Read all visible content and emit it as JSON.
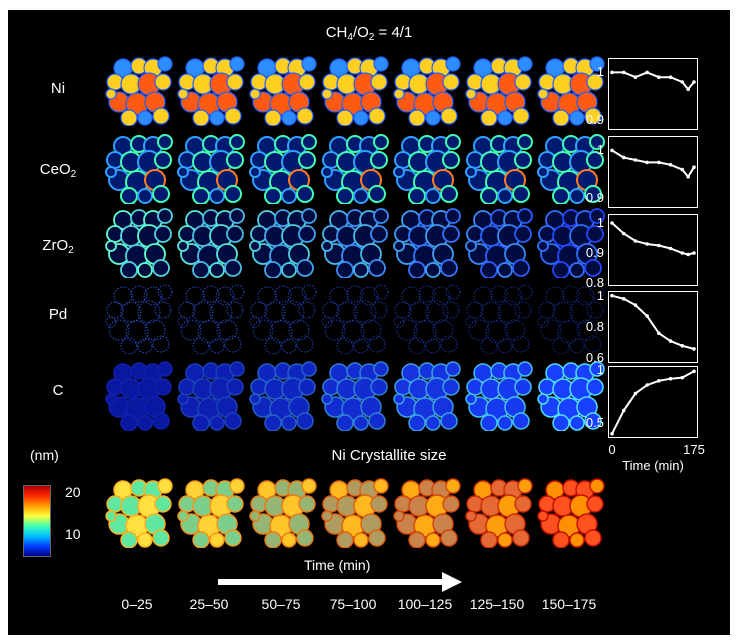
{
  "figure": {
    "title_main": "CH",
    "title_sub1": "4",
    "title_mid": "/O",
    "title_sub2": "2",
    "title_tail": " = 4/1",
    "row_labels": [
      {
        "main": "Ni",
        "sub": ""
      },
      {
        "main": "CeO",
        "sub": "2"
      },
      {
        "main": "ZrO",
        "sub": "2"
      },
      {
        "main": "Pd",
        "sub": ""
      },
      {
        "main": "C",
        "sub": ""
      }
    ],
    "section_label": "Ni Crystallite size",
    "colorbar_unit": "(nm)",
    "colorbar_ticks": [
      "20",
      "10"
    ],
    "time_arrow_label": "Time (min)",
    "time_bins": [
      "0–25",
      "25–50",
      "50–75",
      "75–100",
      "100–125",
      "125–150",
      "150–175"
    ],
    "colors": {
      "background": "#000000",
      "foreground": "#ffffff"
    }
  },
  "chart_data": [
    {
      "type": "line",
      "title": "Ni",
      "xlabel": "",
      "ylabel": "",
      "x": [
        0,
        25,
        50,
        75,
        100,
        125,
        150,
        162.5,
        175
      ],
      "values": [
        1.0,
        1.0,
        0.99,
        1.0,
        0.99,
        0.99,
        0.98,
        0.965,
        0.98
      ],
      "ylim": [
        0.88,
        1.03
      ],
      "yticks": [
        "1",
        "0.9"
      ],
      "ytick_values": [
        1.0,
        0.9
      ],
      "xlim": [
        0,
        175
      ]
    },
    {
      "type": "line",
      "title": "CeO2",
      "xlabel": "",
      "ylabel": "",
      "x": [
        0,
        25,
        50,
        75,
        100,
        125,
        150,
        162.5,
        175
      ],
      "values": [
        1.0,
        0.985,
        0.98,
        0.975,
        0.975,
        0.97,
        0.96,
        0.945,
        0.965
      ],
      "ylim": [
        0.88,
        1.03
      ],
      "yticks": [
        "1",
        "0.9"
      ],
      "ytick_values": [
        1.0,
        0.9
      ],
      "xlim": [
        0,
        175
      ]
    },
    {
      "type": "line",
      "title": "ZrO2",
      "xlabel": "",
      "ylabel": "",
      "x": [
        0,
        25,
        50,
        75,
        100,
        125,
        150,
        162.5,
        175
      ],
      "values": [
        1.0,
        0.965,
        0.94,
        0.93,
        0.925,
        0.915,
        0.9,
        0.895,
        0.9
      ],
      "ylim": [
        0.79,
        1.03
      ],
      "yticks": [
        "1",
        "0.9",
        "0.8"
      ],
      "ytick_values": [
        1.0,
        0.9,
        0.8
      ],
      "xlim": [
        0,
        175
      ]
    },
    {
      "type": "line",
      "title": "Pd",
      "xlabel": "",
      "ylabel": "",
      "x": [
        0,
        25,
        50,
        75,
        100,
        125,
        150,
        175
      ],
      "values": [
        1.0,
        0.98,
        0.94,
        0.87,
        0.76,
        0.71,
        0.68,
        0.66
      ],
      "ylim": [
        0.57,
        1.03
      ],
      "yticks": [
        "1",
        "0.8",
        "0.6"
      ],
      "ytick_values": [
        1.0,
        0.8,
        0.6
      ],
      "xlim": [
        0,
        175
      ]
    },
    {
      "type": "line",
      "title": "C",
      "xlabel": "Time (min)",
      "ylabel": "",
      "x": [
        0,
        25,
        50,
        75,
        100,
        125,
        150,
        175
      ],
      "values": [
        0.4,
        0.62,
        0.78,
        0.86,
        0.9,
        0.92,
        0.93,
        0.99
      ],
      "ylim": [
        0.36,
        1.04
      ],
      "yticks": [
        "1",
        "0.5"
      ],
      "ytick_values": [
        1.0,
        0.5
      ],
      "xlim": [
        0,
        175
      ],
      "xticks": [
        "0",
        "175"
      ],
      "xtick_values": [
        0,
        175
      ]
    }
  ]
}
